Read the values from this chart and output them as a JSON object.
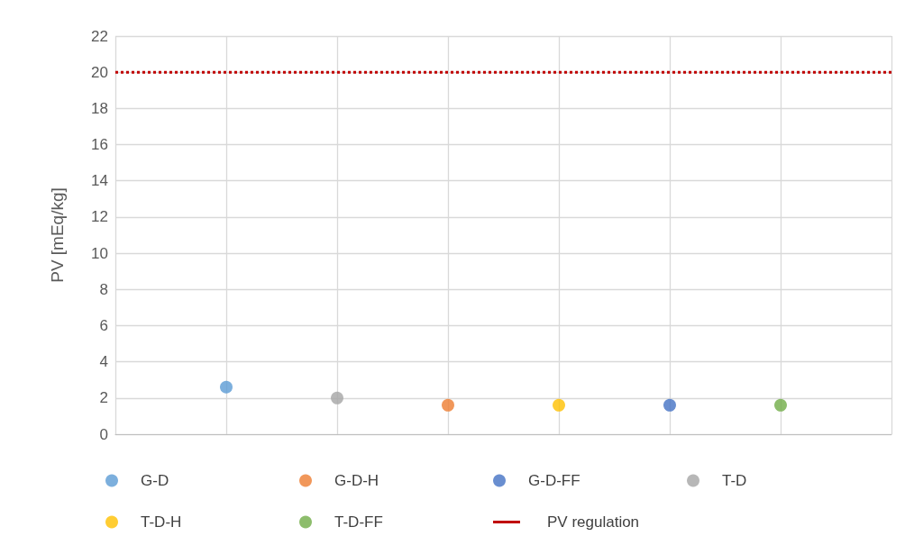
{
  "chart_data": {
    "type": "scatter",
    "ylabel": "PV [mEq/kg]",
    "categories": [
      null,
      null,
      null,
      null,
      null,
      null,
      null,
      null
    ],
    "ylim": [
      0,
      22
    ],
    "yticks": [
      0,
      2,
      4,
      6,
      8,
      10,
      12,
      14,
      16,
      18,
      20,
      22
    ],
    "grid": true,
    "legend": "bottom",
    "marker": "circle",
    "series": [
      {
        "name": "G-D",
        "color": "#5b9bd5",
        "values": [
          null,
          2.6,
          null,
          null,
          null,
          null,
          null,
          null
        ]
      },
      {
        "name": "G-D-H",
        "color": "#ed7d31",
        "values": [
          null,
          null,
          null,
          1.6,
          null,
          null,
          null,
          null
        ]
      },
      {
        "name": "G-D-FF",
        "color": "#4472c4",
        "values": [
          null,
          null,
          null,
          null,
          null,
          1.6,
          null,
          null
        ]
      },
      {
        "name": "T-D",
        "color": "#a5a5a5",
        "values": [
          null,
          null,
          2.0,
          null,
          null,
          null,
          null,
          null
        ]
      },
      {
        "name": "T-D-H",
        "color": "#ffc000",
        "values": [
          null,
          null,
          null,
          null,
          1.6,
          null,
          null,
          null
        ]
      },
      {
        "name": "T-D-FF",
        "color": "#70ad47",
        "values": [
          null,
          null,
          null,
          null,
          null,
          null,
          1.6,
          null
        ]
      }
    ],
    "ref_lines": [
      {
        "axis": "y",
        "value": 20,
        "label": "PV regulation",
        "color": "#c00000",
        "line_style": "dotted"
      }
    ]
  }
}
